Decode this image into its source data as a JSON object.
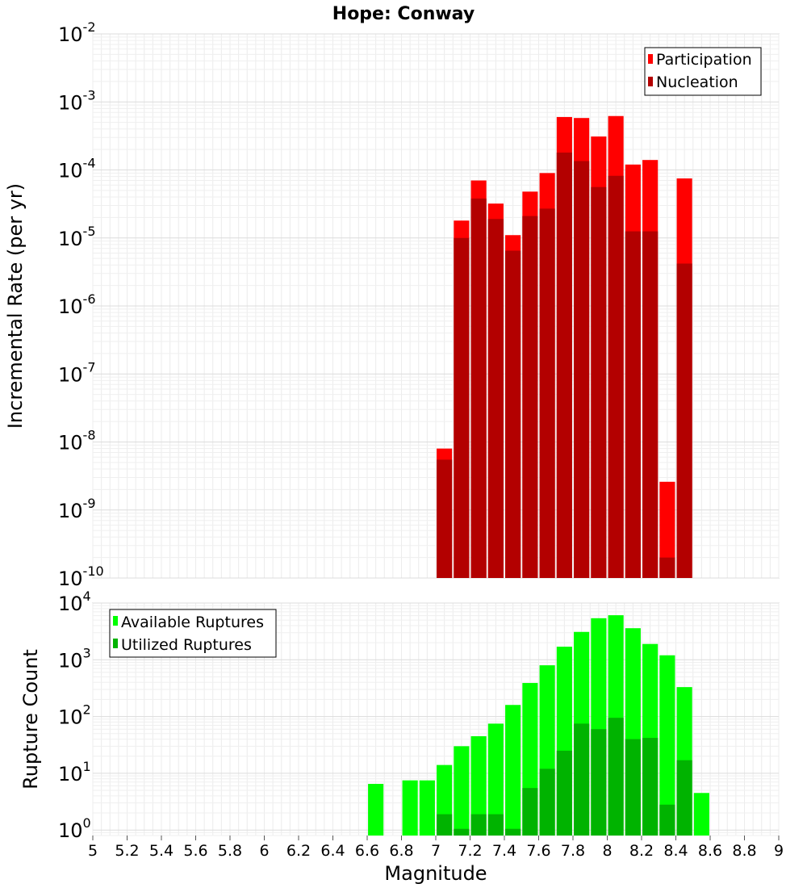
{
  "title": "Hope: Conway",
  "xlabel": "Magnitude",
  "x_ticks": [
    "5",
    "5.2",
    "5.4",
    "5.6",
    "5.8",
    "6",
    "6.2",
    "6.4",
    "6.6",
    "6.8",
    "7",
    "7.2",
    "7.4",
    "7.6",
    "7.8",
    "8",
    "8.2",
    "8.4",
    "8.6",
    "8.8",
    "9"
  ],
  "chart_data": [
    {
      "type": "bar",
      "ylabel": "Incremental Rate (per yr)",
      "yscale": "log",
      "ylim": [
        1e-10,
        0.01
      ],
      "xlim": [
        5,
        9
      ],
      "grid": true,
      "legend_position": "top-right",
      "bar_width": 0.09,
      "y_tick_exponents": [
        "-2",
        "-3",
        "-4",
        "-5",
        "-6",
        "-7",
        "-8",
        "-9",
        "-10"
      ],
      "x": [
        7.05,
        7.15,
        7.25,
        7.35,
        7.45,
        7.55,
        7.65,
        7.75,
        7.85,
        7.95,
        8.05,
        8.15,
        8.25,
        8.35,
        8.45
      ],
      "series": [
        {
          "name": "Participation",
          "color": "#ff0000",
          "values": [
            8e-09,
            1.8e-05,
            7e-05,
            3.2e-05,
            1.1e-05,
            4.8e-05,
            9e-05,
            0.0006,
            0.00058,
            0.00031,
            0.00062,
            0.00012,
            0.00014,
            2.6e-09,
            7.5e-05
          ]
        },
        {
          "name": "Nucleation",
          "color": "#b30000",
          "values": [
            5.5e-09,
            1e-05,
            3.8e-05,
            1.9e-05,
            6.5e-06,
            2.1e-05,
            2.7e-05,
            0.00018,
            0.000135,
            5.6e-05,
            8.2e-05,
            1.25e-05,
            1.25e-05,
            2e-10,
            4.2e-06
          ]
        }
      ]
    },
    {
      "type": "bar",
      "ylabel": "Rupture Count",
      "yscale": "log",
      "ylim": [
        0.8,
        10000
      ],
      "xlim": [
        5,
        9
      ],
      "grid": true,
      "legend_position": "top-left",
      "bar_width": 0.09,
      "y_tick_exponents": [
        "0",
        "1",
        "2",
        "3",
        "4"
      ],
      "x": [
        6.65,
        6.75,
        6.85,
        6.95,
        7.05,
        7.15,
        7.25,
        7.35,
        7.45,
        7.55,
        7.65,
        7.75,
        7.85,
        7.95,
        8.05,
        8.15,
        8.25,
        8.35,
        8.45,
        8.55
      ],
      "series": [
        {
          "name": "Available Ruptures",
          "color": "#00ff00",
          "values": [
            6.5,
            0,
            7.5,
            7.5,
            14,
            30,
            45,
            75,
            160,
            390,
            800,
            1700,
            3100,
            5400,
            6100,
            3600,
            1900,
            1200,
            330,
            4.5
          ]
        },
        {
          "name": "Utilized Ruptures",
          "color": "#00b300",
          "values": [
            0,
            0,
            0,
            0,
            1.9,
            1.05,
            1.9,
            1.9,
            1.05,
            5.5,
            12,
            25,
            75,
            60,
            95,
            40,
            42,
            2.8,
            17,
            0
          ]
        }
      ]
    }
  ]
}
